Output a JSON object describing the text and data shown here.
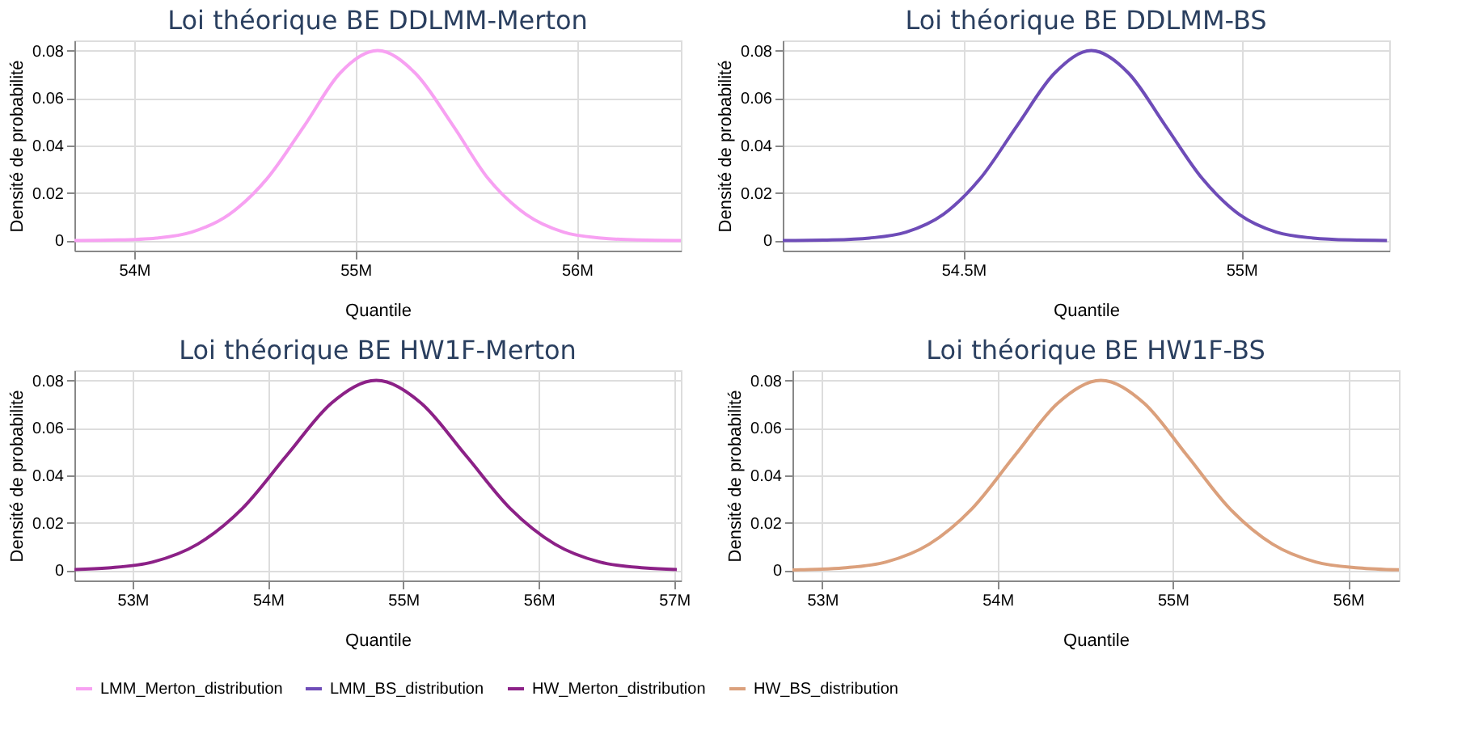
{
  "chart_data": [
    {
      "type": "line",
      "title": "Loi théorique BE DDLMM-Merton",
      "xlabel": "Quantile",
      "ylabel": "Densité de probabilité",
      "grid": true,
      "legend": "bottom",
      "series": [
        {
          "name": "LMM_Merton_distribution",
          "color": "#f7a1f2",
          "x": [
            53730000,
            53760000,
            53930000,
            54100000,
            54260000,
            54430000,
            54600000,
            54770000,
            54930000,
            55100000,
            55270000,
            55440000,
            55600000,
            55770000,
            55940000,
            56110000,
            56270000,
            56440000,
            56470000
          ],
          "values": [
            0,
            0,
            0.0002,
            0.001,
            0.0035,
            0.011,
            0.026,
            0.0485,
            0.0705,
            0.08,
            0.0705,
            0.0485,
            0.026,
            0.011,
            0.0035,
            0.001,
            0.0002,
            0,
            0
          ]
        }
      ],
      "xlim": [
        53730000,
        56470000
      ],
      "xticks": [
        {
          "value": 54000000,
          "label": "54M"
        },
        {
          "value": 55000000,
          "label": "55M"
        },
        {
          "value": 56000000,
          "label": "56M"
        }
      ],
      "ylim": [
        -0.0043,
        0.0843
      ],
      "yticks": [
        0,
        0.02,
        0.04,
        0.06,
        0.08
      ]
    },
    {
      "type": "line",
      "title": "Loi théorique BE DDLMM-BS",
      "xlabel": "Quantile",
      "ylabel": "Densité de probabilité",
      "grid": true,
      "legend": "bottom",
      "series": [
        {
          "name": "LMM_BS_distribution",
          "color": "#6e4cb8",
          "x": [
            54175000,
            54198000,
            54264000,
            54331000,
            54397000,
            54464000,
            54530000,
            54597000,
            54664000,
            54730000,
            54797000,
            54863000,
            54930000,
            54996000,
            55063000,
            55129000,
            55196000,
            55262000
          ],
          "values": [
            0,
            0,
            0.0002,
            0.001,
            0.0035,
            0.011,
            0.026,
            0.0485,
            0.0705,
            0.08,
            0.0705,
            0.0485,
            0.026,
            0.011,
            0.0035,
            0.001,
            0.0002,
            0
          ]
        }
      ],
      "xlim": [
        54175000,
        55266000
      ],
      "xticks": [
        {
          "value": 54500000,
          "label": "54.5M"
        },
        {
          "value": 55000000,
          "label": "55M"
        }
      ],
      "ylim": [
        -0.0043,
        0.0843
      ],
      "yticks": [
        0,
        0.02,
        0.04,
        0.06,
        0.08
      ]
    },
    {
      "type": "line",
      "title": "Loi théorique BE HW1F-Merton",
      "xlabel": "Quantile",
      "ylabel": "Densité de probabilité",
      "grid": true,
      "legend": "bottom",
      "series": [
        {
          "name": "HW_Merton_distribution",
          "color": "#8c2187",
          "x": [
            52570000,
            52820000,
            53150000,
            53480000,
            53810000,
            54140000,
            54470000,
            54800000,
            55130000,
            55460000,
            55790000,
            56120000,
            56450000,
            56780000,
            57020000
          ],
          "values": [
            0.0003,
            0.001,
            0.0035,
            0.011,
            0.026,
            0.0485,
            0.0705,
            0.08,
            0.0705,
            0.0485,
            0.026,
            0.011,
            0.0035,
            0.001,
            0.0003
          ]
        }
      ],
      "xlim": [
        52570000,
        57050000
      ],
      "xticks": [
        {
          "value": 53000000,
          "label": "53M"
        },
        {
          "value": 54000000,
          "label": "54M"
        },
        {
          "value": 55000000,
          "label": "55M"
        },
        {
          "value": 56000000,
          "label": "56M"
        },
        {
          "value": 57000000,
          "label": "57M"
        }
      ],
      "ylim": [
        -0.0043,
        0.0843
      ],
      "yticks": [
        0,
        0.02,
        0.04,
        0.06,
        0.08
      ]
    },
    {
      "type": "line",
      "title": "Loi théorique BE HW1F-BS",
      "xlabel": "Quantile",
      "ylabel": "Densité de probabilité",
      "grid": true,
      "legend": "bottom",
      "series": [
        {
          "name": "HW_BS_distribution",
          "color": "#dba07c",
          "x": [
            52830000,
            52875000,
            53120000,
            53365000,
            53610000,
            53855000,
            54100000,
            54345000,
            54590000,
            54835000,
            55080000,
            55325000,
            55570000,
            55815000,
            56060000,
            56290000
          ],
          "values": [
            0.0001,
            0.0002,
            0.001,
            0.0035,
            0.011,
            0.026,
            0.0485,
            0.0705,
            0.08,
            0.0705,
            0.0485,
            0.026,
            0.011,
            0.0035,
            0.001,
            0.0002
          ]
        }
      ],
      "xlim": [
        52830000,
        56290000
      ],
      "xticks": [
        {
          "value": 53000000,
          "label": "53M"
        },
        {
          "value": 54000000,
          "label": "54M"
        },
        {
          "value": 55000000,
          "label": "55M"
        },
        {
          "value": 56000000,
          "label": "56M"
        }
      ],
      "ylim": [
        -0.0043,
        0.0843
      ],
      "yticks": [
        0,
        0.02,
        0.04,
        0.06,
        0.08
      ]
    }
  ]
}
